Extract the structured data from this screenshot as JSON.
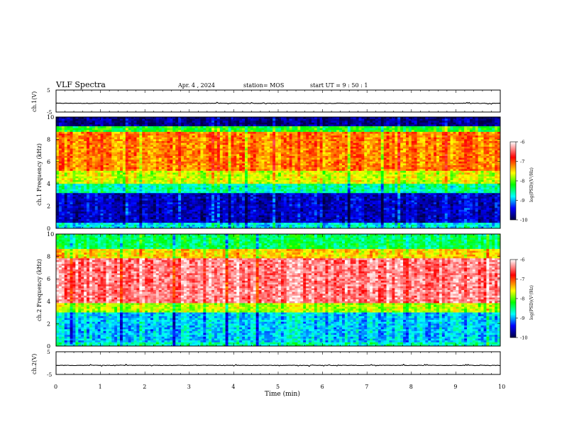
{
  "header": {
    "title": "VLF Spectra",
    "date": "Apr. 4 , 2024",
    "station": "station= MOS",
    "start": "start UT =  9 : 50 : 1"
  },
  "panels": {
    "ch1v_label": "ch.1(V)",
    "ch1_freq_label": "ch.1  Frequency (kHz)",
    "ch2_freq_label": "ch.2  Frequency (kHz)",
    "ch2v_label": "ch.2(V)"
  },
  "colorbar": {
    "label": "log(PSD)(V²/Hz)",
    "ticks": [
      "-6",
      "-7",
      "-8",
      "-9",
      "-10"
    ],
    "colors": [
      "#ffffff",
      "#ff0000",
      "#ffff00",
      "#00ff00",
      "#00ffff",
      "#0000ff",
      "#000044"
    ]
  },
  "chart_data": [
    {
      "type": "line",
      "title": "",
      "ylabel": "ch.1(V)",
      "ylim": [
        -5,
        5
      ],
      "y_ticks": [
        "5",
        "-5"
      ],
      "x": [
        0,
        10
      ],
      "series": [
        {
          "values": [
            -1,
            -1
          ]
        }
      ]
    },
    {
      "type": "heatmap",
      "ylabel": "ch.1  Frequency (kHz)",
      "ylim": [
        0,
        10
      ],
      "y_ticks": [
        "0",
        "2",
        "4",
        "6",
        "8",
        "10"
      ],
      "xlim": [
        0,
        10
      ],
      "bands": [
        {
          "from": 0,
          "to": 0.5,
          "level": -8.8
        },
        {
          "from": 0.5,
          "to": 3.2,
          "level": -9.6
        },
        {
          "from": 3.2,
          "to": 4.0,
          "level": -8.6
        },
        {
          "from": 4.0,
          "to": 5.2,
          "level": -7.7
        },
        {
          "from": 5.2,
          "to": 8.6,
          "level": -7.2
        },
        {
          "from": 8.6,
          "to": 9.2,
          "level": -8.2
        },
        {
          "from": 9.2,
          "to": 10,
          "level": -9.8
        }
      ]
    },
    {
      "type": "heatmap",
      "ylabel": "ch.2  Frequency (kHz)",
      "ylim": [
        0,
        10
      ],
      "y_ticks": [
        "0",
        "2",
        "4",
        "6",
        "8",
        "10"
      ],
      "xlim": [
        0,
        10
      ],
      "bands": [
        {
          "from": 0,
          "to": 0.4,
          "level": -8.6
        },
        {
          "from": 0.4,
          "to": 3.0,
          "level": -8.9
        },
        {
          "from": 3.0,
          "to": 3.8,
          "level": -7.8
        },
        {
          "from": 3.8,
          "to": 7.8,
          "level": -6.4
        },
        {
          "from": 7.8,
          "to": 8.6,
          "level": -7.5
        },
        {
          "from": 8.6,
          "to": 10,
          "level": -8.4
        }
      ]
    },
    {
      "type": "line",
      "title": "",
      "ylabel": "ch.2(V)",
      "ylim": [
        -5,
        5
      ],
      "y_ticks": [
        "5",
        "-5"
      ],
      "x": [
        0,
        10
      ],
      "series": [
        {
          "values": [
            -1,
            -1
          ]
        }
      ]
    }
  ],
  "xaxis": {
    "label": "Time (min)",
    "ticks": [
      "0",
      "1",
      "2",
      "3",
      "4",
      "5",
      "6",
      "7",
      "8",
      "9",
      "10"
    ]
  }
}
